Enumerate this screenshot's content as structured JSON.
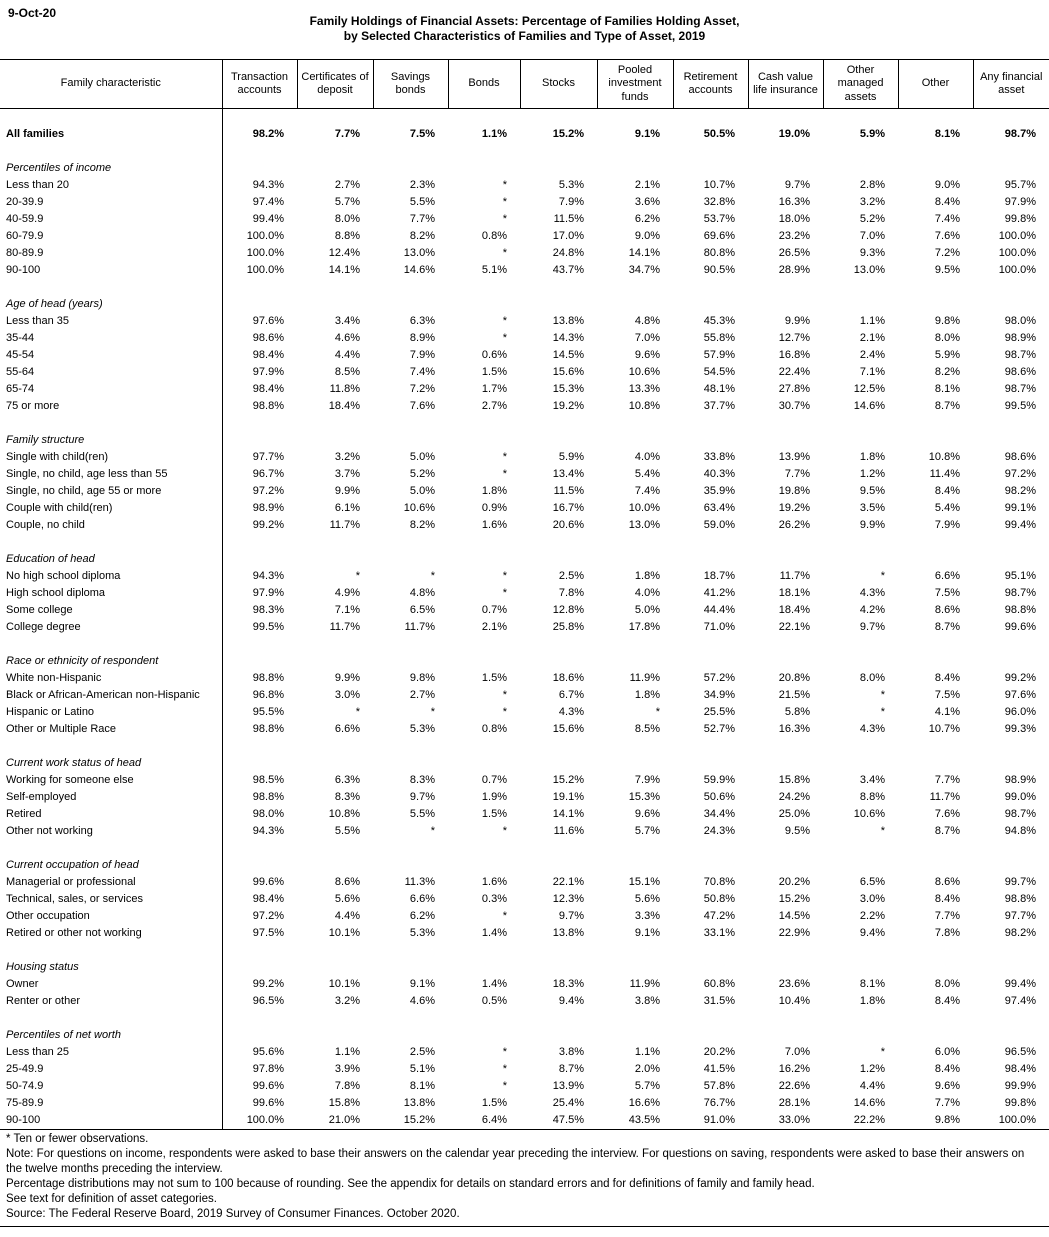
{
  "page": {
    "date": "9-Oct-20",
    "title_line1": "Family Holdings of Financial Assets: Percentage of Families Holding Asset,",
    "title_line2": "by Selected Characteristics of Families and Type of Asset, 2019"
  },
  "table": {
    "columns": [
      "Family characteristic",
      "Transaction accounts",
      "Certificates of deposit",
      "Savings bonds",
      "Bonds",
      "Stocks",
      "Pooled investment funds",
      "Retirement accounts",
      "Cash value life insurance",
      "Other managed assets",
      "Other",
      "Any financial asset"
    ],
    "all_families": {
      "label": "All families",
      "values": [
        "98.2%",
        "7.7%",
        "7.5%",
        "1.1%",
        "15.2%",
        "9.1%",
        "50.5%",
        "19.0%",
        "5.9%",
        "8.1%",
        "98.7%"
      ]
    },
    "sections": [
      {
        "heading": "Percentiles of income",
        "rows": [
          {
            "label": "Less than 20",
            "values": [
              "94.3%",
              "2.7%",
              "2.3%",
              "*",
              "5.3%",
              "2.1%",
              "10.7%",
              "9.7%",
              "2.8%",
              "9.0%",
              "95.7%"
            ]
          },
          {
            "label": "20-39.9",
            "values": [
              "97.4%",
              "5.7%",
              "5.5%",
              "*",
              "7.9%",
              "3.6%",
              "32.8%",
              "16.3%",
              "3.2%",
              "8.4%",
              "97.9%"
            ]
          },
          {
            "label": "40-59.9",
            "values": [
              "99.4%",
              "8.0%",
              "7.7%",
              "*",
              "11.5%",
              "6.2%",
              "53.7%",
              "18.0%",
              "5.2%",
              "7.4%",
              "99.8%"
            ]
          },
          {
            "label": "60-79.9",
            "values": [
              "100.0%",
              "8.8%",
              "8.2%",
              "0.8%",
              "17.0%",
              "9.0%",
              "69.6%",
              "23.2%",
              "7.0%",
              "7.6%",
              "100.0%"
            ]
          },
          {
            "label": "80-89.9",
            "values": [
              "100.0%",
              "12.4%",
              "13.0%",
              "*",
              "24.8%",
              "14.1%",
              "80.8%",
              "26.5%",
              "9.3%",
              "7.2%",
              "100.0%"
            ]
          },
          {
            "label": "90-100",
            "values": [
              "100.0%",
              "14.1%",
              "14.6%",
              "5.1%",
              "43.7%",
              "34.7%",
              "90.5%",
              "28.9%",
              "13.0%",
              "9.5%",
              "100.0%"
            ]
          }
        ]
      },
      {
        "heading": "Age of head (years)",
        "rows": [
          {
            "label": "Less than 35",
            "values": [
              "97.6%",
              "3.4%",
              "6.3%",
              "*",
              "13.8%",
              "4.8%",
              "45.3%",
              "9.9%",
              "1.1%",
              "9.8%",
              "98.0%"
            ]
          },
          {
            "label": "35-44",
            "values": [
              "98.6%",
              "4.6%",
              "8.9%",
              "*",
              "14.3%",
              "7.0%",
              "55.8%",
              "12.7%",
              "2.1%",
              "8.0%",
              "98.9%"
            ]
          },
          {
            "label": "45-54",
            "values": [
              "98.4%",
              "4.4%",
              "7.9%",
              "0.6%",
              "14.5%",
              "9.6%",
              "57.9%",
              "16.8%",
              "2.4%",
              "5.9%",
              "98.7%"
            ]
          },
          {
            "label": "55-64",
            "values": [
              "97.9%",
              "8.5%",
              "7.4%",
              "1.5%",
              "15.6%",
              "10.6%",
              "54.5%",
              "22.4%",
              "7.1%",
              "8.2%",
              "98.6%"
            ]
          },
          {
            "label": "65-74",
            "values": [
              "98.4%",
              "11.8%",
              "7.2%",
              "1.7%",
              "15.3%",
              "13.3%",
              "48.1%",
              "27.8%",
              "12.5%",
              "8.1%",
              "98.7%"
            ]
          },
          {
            "label": "75 or more",
            "values": [
              "98.8%",
              "18.4%",
              "7.6%",
              "2.7%",
              "19.2%",
              "10.8%",
              "37.7%",
              "30.7%",
              "14.6%",
              "8.7%",
              "99.5%"
            ]
          }
        ]
      },
      {
        "heading": "Family structure",
        "rows": [
          {
            "label": "Single with child(ren)",
            "values": [
              "97.7%",
              "3.2%",
              "5.0%",
              "*",
              "5.9%",
              "4.0%",
              "33.8%",
              "13.9%",
              "1.8%",
              "10.8%",
              "98.6%"
            ]
          },
          {
            "label": "Single, no child, age less than 55",
            "values": [
              "96.7%",
              "3.7%",
              "5.2%",
              "*",
              "13.4%",
              "5.4%",
              "40.3%",
              "7.7%",
              "1.2%",
              "11.4%",
              "97.2%"
            ]
          },
          {
            "label": "Single, no child, age 55 or more",
            "values": [
              "97.2%",
              "9.9%",
              "5.0%",
              "1.8%",
              "11.5%",
              "7.4%",
              "35.9%",
              "19.8%",
              "9.5%",
              "8.4%",
              "98.2%"
            ]
          },
          {
            "label": "Couple with child(ren)",
            "values": [
              "98.9%",
              "6.1%",
              "10.6%",
              "0.9%",
              "16.7%",
              "10.0%",
              "63.4%",
              "19.2%",
              "3.5%",
              "5.4%",
              "99.1%"
            ]
          },
          {
            "label": "Couple, no child",
            "values": [
              "99.2%",
              "11.7%",
              "8.2%",
              "1.6%",
              "20.6%",
              "13.0%",
              "59.0%",
              "26.2%",
              "9.9%",
              "7.9%",
              "99.4%"
            ]
          }
        ]
      },
      {
        "heading": "Education of head",
        "rows": [
          {
            "label": "No high school diploma",
            "values": [
              "94.3%",
              "*",
              "*",
              "*",
              "2.5%",
              "1.8%",
              "18.7%",
              "11.7%",
              "*",
              "6.6%",
              "95.1%"
            ]
          },
          {
            "label": "High school diploma",
            "values": [
              "97.9%",
              "4.9%",
              "4.8%",
              "*",
              "7.8%",
              "4.0%",
              "41.2%",
              "18.1%",
              "4.3%",
              "7.5%",
              "98.7%"
            ]
          },
          {
            "label": "Some college",
            "values": [
              "98.3%",
              "7.1%",
              "6.5%",
              "0.7%",
              "12.8%",
              "5.0%",
              "44.4%",
              "18.4%",
              "4.2%",
              "8.6%",
              "98.8%"
            ]
          },
          {
            "label": "College degree",
            "values": [
              "99.5%",
              "11.7%",
              "11.7%",
              "2.1%",
              "25.8%",
              "17.8%",
              "71.0%",
              "22.1%",
              "9.7%",
              "8.7%",
              "99.6%"
            ]
          }
        ]
      },
      {
        "heading": "Race or ethnicity of respondent",
        "rows": [
          {
            "label": "White non-Hispanic",
            "values": [
              "98.8%",
              "9.9%",
              "9.8%",
              "1.5%",
              "18.6%",
              "11.9%",
              "57.2%",
              "20.8%",
              "8.0%",
              "8.4%",
              "99.2%"
            ]
          },
          {
            "label": "Black or African-American non-Hispanic",
            "values": [
              "96.8%",
              "3.0%",
              "2.7%",
              "*",
              "6.7%",
              "1.8%",
              "34.9%",
              "21.5%",
              "*",
              "7.5%",
              "97.6%"
            ]
          },
          {
            "label": "Hispanic or Latino",
            "values": [
              "95.5%",
              "*",
              "*",
              "*",
              "4.3%",
              "*",
              "25.5%",
              "5.8%",
              "*",
              "4.1%",
              "96.0%"
            ]
          },
          {
            "label": "Other or Multiple Race",
            "values": [
              "98.8%",
              "6.6%",
              "5.3%",
              "0.8%",
              "15.6%",
              "8.5%",
              "52.7%",
              "16.3%",
              "4.3%",
              "10.7%",
              "99.3%"
            ]
          }
        ]
      },
      {
        "heading": "Current work status of head",
        "rows": [
          {
            "label": "Working for someone else",
            "values": [
              "98.5%",
              "6.3%",
              "8.3%",
              "0.7%",
              "15.2%",
              "7.9%",
              "59.9%",
              "15.8%",
              "3.4%",
              "7.7%",
              "98.9%"
            ]
          },
          {
            "label": "Self-employed",
            "values": [
              "98.8%",
              "8.3%",
              "9.7%",
              "1.9%",
              "19.1%",
              "15.3%",
              "50.6%",
              "24.2%",
              "8.8%",
              "11.7%",
              "99.0%"
            ]
          },
          {
            "label": "Retired",
            "values": [
              "98.0%",
              "10.8%",
              "5.5%",
              "1.5%",
              "14.1%",
              "9.6%",
              "34.4%",
              "25.0%",
              "10.6%",
              "7.6%",
              "98.7%"
            ]
          },
          {
            "label": "Other not working",
            "values": [
              "94.3%",
              "5.5%",
              "*",
              "*",
              "11.6%",
              "5.7%",
              "24.3%",
              "9.5%",
              "*",
              "8.7%",
              "94.8%"
            ]
          }
        ]
      },
      {
        "heading": "Current occupation of head",
        "rows": [
          {
            "label": "Managerial or professional",
            "values": [
              "99.6%",
              "8.6%",
              "11.3%",
              "1.6%",
              "22.1%",
              "15.1%",
              "70.8%",
              "20.2%",
              "6.5%",
              "8.6%",
              "99.7%"
            ]
          },
          {
            "label": "Technical, sales, or services",
            "values": [
              "98.4%",
              "5.6%",
              "6.6%",
              "0.3%",
              "12.3%",
              "5.6%",
              "50.8%",
              "15.2%",
              "3.0%",
              "8.4%",
              "98.8%"
            ]
          },
          {
            "label": "Other occupation",
            "values": [
              "97.2%",
              "4.4%",
              "6.2%",
              "*",
              "9.7%",
              "3.3%",
              "47.2%",
              "14.5%",
              "2.2%",
              "7.7%",
              "97.7%"
            ]
          },
          {
            "label": "Retired or other not working",
            "values": [
              "97.5%",
              "10.1%",
              "5.3%",
              "1.4%",
              "13.8%",
              "9.1%",
              "33.1%",
              "22.9%",
              "9.4%",
              "7.8%",
              "98.2%"
            ]
          }
        ]
      },
      {
        "heading": "Housing status",
        "rows": [
          {
            "label": "Owner",
            "values": [
              "99.2%",
              "10.1%",
              "9.1%",
              "1.4%",
              "18.3%",
              "11.9%",
              "60.8%",
              "23.6%",
              "8.1%",
              "8.0%",
              "99.4%"
            ]
          },
          {
            "label": "Renter or other",
            "values": [
              "96.5%",
              "3.2%",
              "4.6%",
              "0.5%",
              "9.4%",
              "3.8%",
              "31.5%",
              "10.4%",
              "1.8%",
              "8.4%",
              "97.4%"
            ]
          }
        ]
      },
      {
        "heading": "Percentiles of net worth",
        "rows": [
          {
            "label": "Less than 25",
            "values": [
              "95.6%",
              "1.1%",
              "2.5%",
              "*",
              "3.8%",
              "1.1%",
              "20.2%",
              "7.0%",
              "*",
              "6.0%",
              "96.5%"
            ]
          },
          {
            "label": "25-49.9",
            "values": [
              "97.8%",
              "3.9%",
              "5.1%",
              "*",
              "8.7%",
              "2.0%",
              "41.5%",
              "16.2%",
              "1.2%",
              "8.4%",
              "98.4%"
            ]
          },
          {
            "label": "50-74.9",
            "values": [
              "99.6%",
              "7.8%",
              "8.1%",
              "*",
              "13.9%",
              "5.7%",
              "57.8%",
              "22.6%",
              "4.4%",
              "9.6%",
              "99.9%"
            ]
          },
          {
            "label": "75-89.9",
            "values": [
              "99.6%",
              "15.8%",
              "13.8%",
              "1.5%",
              "25.4%",
              "16.6%",
              "76.7%",
              "28.1%",
              "14.6%",
              "7.7%",
              "99.8%"
            ]
          },
          {
            "label": "90-100",
            "values": [
              "100.0%",
              "21.0%",
              "15.2%",
              "6.4%",
              "47.5%",
              "43.5%",
              "91.0%",
              "33.0%",
              "22.2%",
              "9.8%",
              "100.0%"
            ]
          }
        ]
      }
    ]
  },
  "footnotes": [
    "* Ten or fewer observations.",
    "Note: For questions on income, respondents were asked to base their answers on the calendar year preceding the interview. For questions on saving, respondents were asked to base their answers on the twelve months preceding the interview.",
    "Percentage distributions may not sum to 100 because of rounding. See the appendix for details on standard errors and for definitions of family and family head.",
    "See text for definition of asset categories.",
    "Source: The Federal Reserve Board, 2019 Survey of Consumer Finances. October 2020."
  ]
}
